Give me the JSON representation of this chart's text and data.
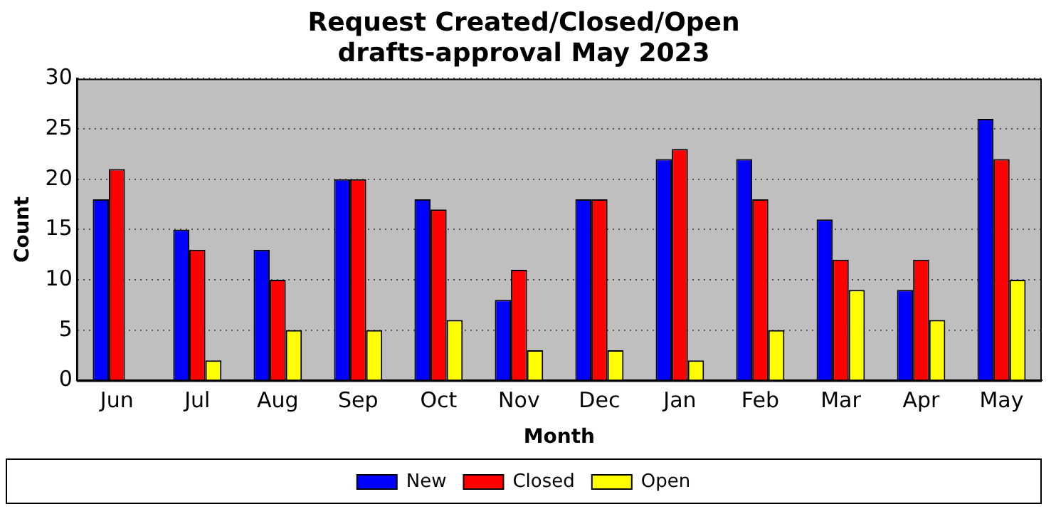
{
  "chart_data": {
    "type": "bar",
    "title": "Request Created/Closed/Open",
    "subtitle": "drafts-approval May 2023",
    "xlabel": "Month",
    "ylabel": "Count",
    "categories": [
      "Jun",
      "Jul",
      "Aug",
      "Sep",
      "Oct",
      "Nov",
      "Dec",
      "Jan",
      "Feb",
      "Mar",
      "Apr",
      "May"
    ],
    "series": [
      {
        "name": "New",
        "color": "#0000ff",
        "values": [
          18,
          15,
          13,
          20,
          18,
          8,
          18,
          22,
          22,
          16,
          9,
          26
        ]
      },
      {
        "name": "Closed",
        "color": "#ff0000",
        "values": [
          21,
          13,
          10,
          20,
          17,
          11,
          18,
          23,
          18,
          12,
          12,
          22
        ]
      },
      {
        "name": "Open",
        "color": "#ffff00",
        "values": [
          0,
          2,
          5,
          5,
          6,
          3,
          3,
          2,
          5,
          9,
          6,
          10
        ]
      }
    ],
    "ylim": [
      0,
      30
    ],
    "yticks": [
      0,
      5,
      10,
      15,
      20,
      25,
      30
    ],
    "grid": "y",
    "line_style": "dotted",
    "legend": "bottom"
  }
}
